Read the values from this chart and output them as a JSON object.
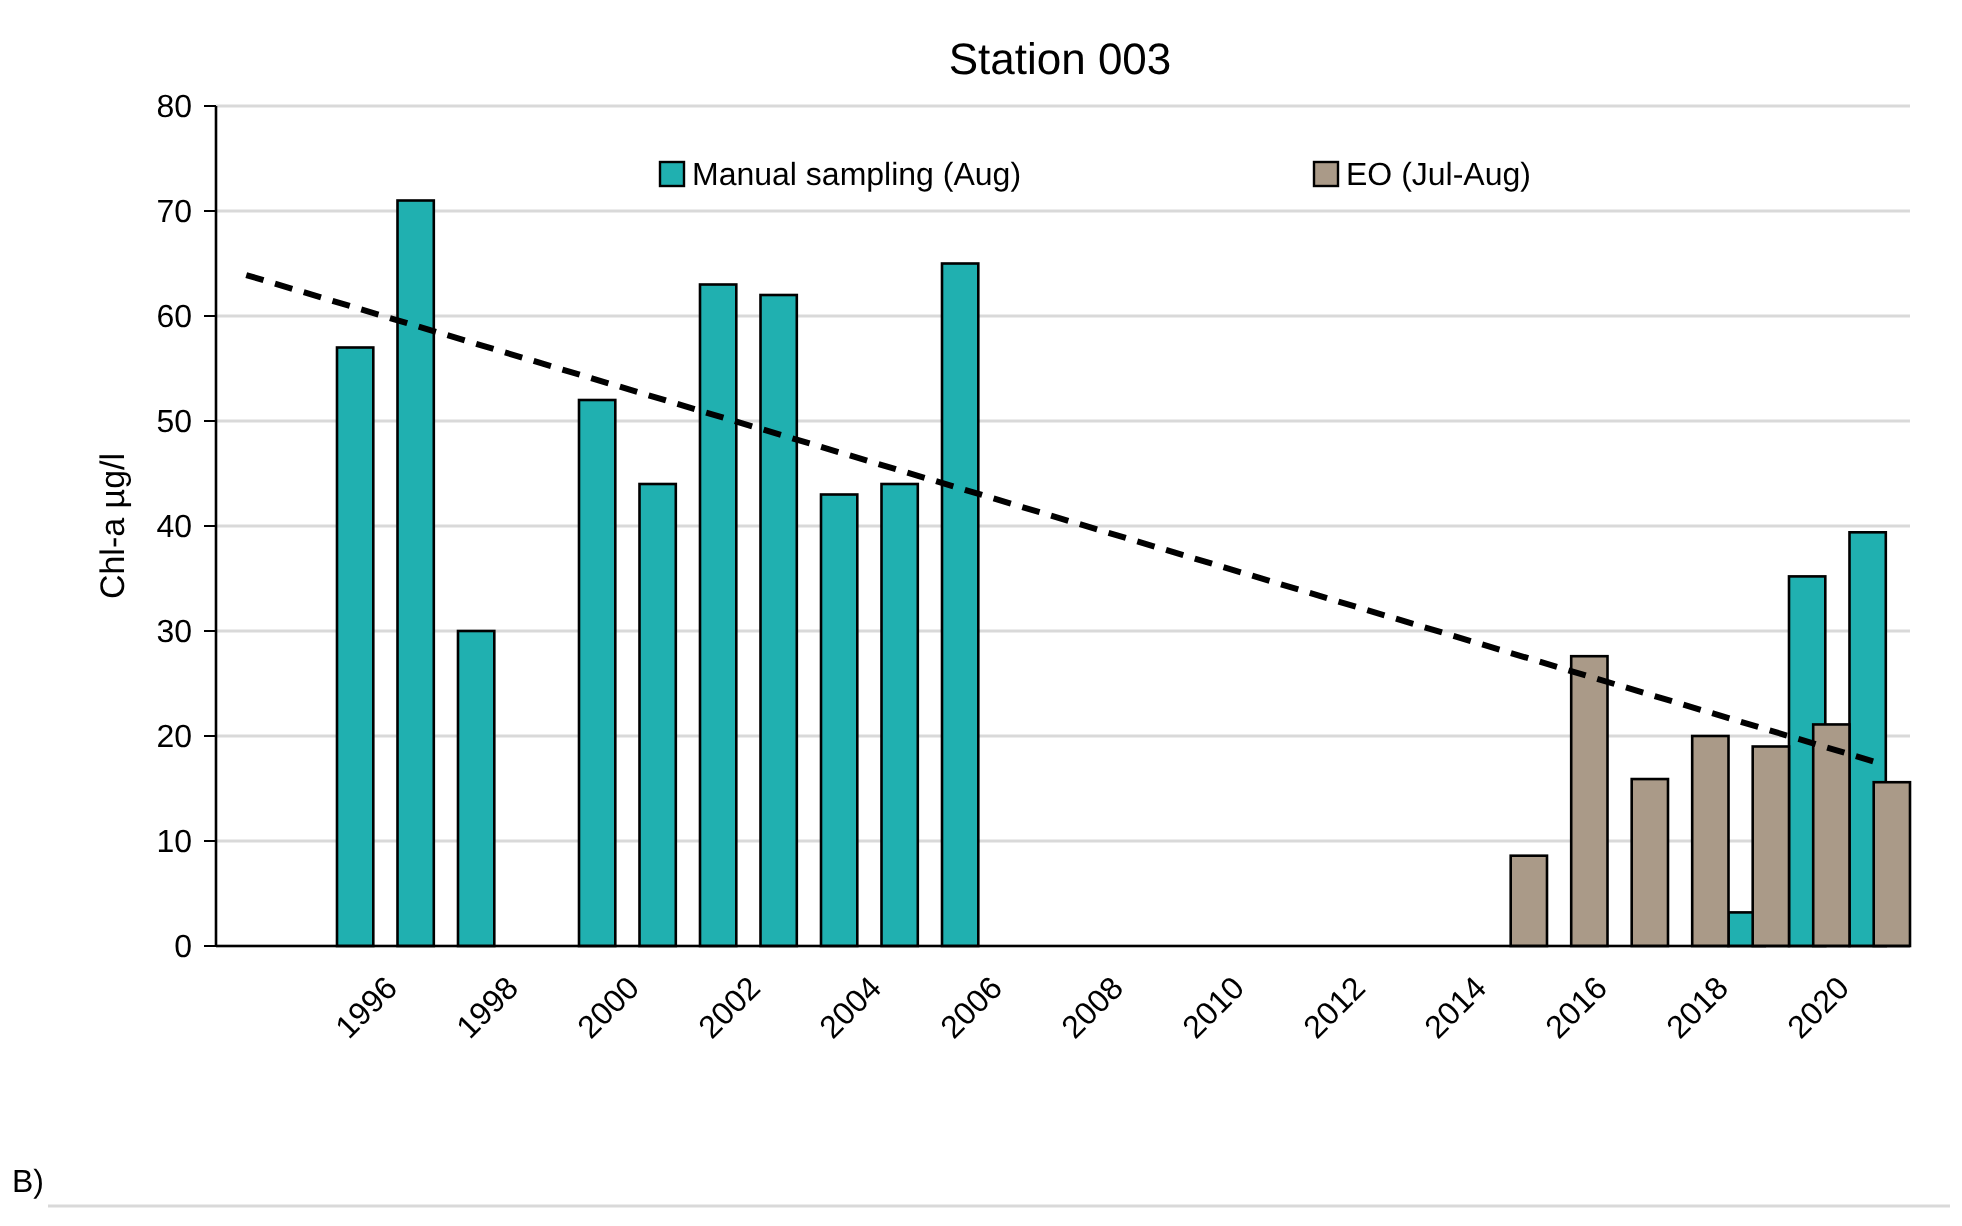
{
  "chart_data": {
    "type": "bar",
    "title": "Station 003",
    "ylabel": "Chl-a µg/l",
    "xlim": [
      1993.5,
      2021.5
    ],
    "xticks": [
      1996,
      1998,
      2000,
      2002,
      2004,
      2006,
      2008,
      2010,
      2012,
      2014,
      2016,
      2018,
      2020
    ],
    "ylim": [
      0,
      80
    ],
    "yticks": [
      0,
      10,
      20,
      30,
      40,
      50,
      60,
      70,
      80
    ],
    "grid": "y",
    "legend": "top",
    "series": [
      {
        "name": "Manual sampling (Aug)",
        "color": "#20b0b0",
        "x": [
          1996,
          1997,
          1998,
          2000,
          2001,
          2002,
          2003,
          2004,
          2005,
          2006,
          2019,
          2020,
          2021
        ],
        "values": [
          57,
          71,
          30,
          52,
          44,
          63,
          62,
          43,
          44,
          65,
          3.2,
          35.2,
          39.4
        ]
      },
      {
        "name": "EO (Jul-Aug)",
        "color": "#aa9a88",
        "x": [
          2015,
          2016,
          2017,
          2018,
          2019,
          2020,
          2021
        ],
        "values": [
          8.6,
          27.6,
          15.9,
          20,
          19,
          21.1,
          15.6
        ]
      },
      {
        "type": "line",
        "color": "#000000",
        "line_style": "dashed",
        "x": [
          1994,
          2021
        ],
        "values": [
          63.9,
          17.4
        ]
      }
    ],
    "annotations": [
      "B)"
    ]
  }
}
